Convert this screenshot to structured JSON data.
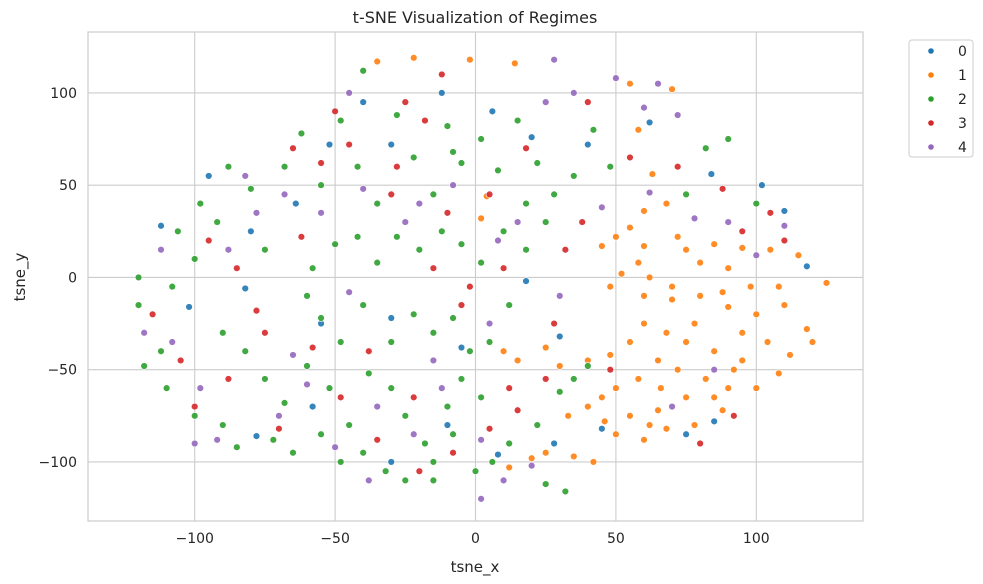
{
  "chart_data": {
    "type": "scatter",
    "title": "t-SNE Visualization of Regimes",
    "xlabel": "tsne_x",
    "ylabel": "tsne_y",
    "xlim": [
      -138,
      138
    ],
    "ylim": [
      -132,
      133
    ],
    "xticks": [
      -100,
      -50,
      0,
      50,
      100
    ],
    "xtick_labels": [
      "−100",
      "−50",
      "0",
      "50",
      "100"
    ],
    "yticks": [
      -100,
      -50,
      0,
      50,
      100
    ],
    "ytick_labels": [
      "−100",
      "−50",
      "0",
      "50",
      "100"
    ],
    "grid": true,
    "legend_position": "outside-top-right",
    "series": [
      {
        "name": "0",
        "color": "#1f77b4",
        "values": [
          [
            -112,
            28
          ],
          [
            -95,
            55
          ],
          [
            -80,
            25
          ],
          [
            -64,
            40
          ],
          [
            -52,
            72
          ],
          [
            -40,
            95
          ],
          [
            -30,
            72
          ],
          [
            -12,
            100
          ],
          [
            6,
            90
          ],
          [
            20,
            76
          ],
          [
            40,
            72
          ],
          [
            62,
            84
          ],
          [
            84,
            56
          ],
          [
            102,
            50
          ],
          [
            110,
            36
          ],
          [
            118,
            6
          ],
          [
            -102,
            -16
          ],
          [
            -82,
            -6
          ],
          [
            -55,
            -25
          ],
          [
            -30,
            -22
          ],
          [
            -5,
            -38
          ],
          [
            18,
            -2
          ],
          [
            30,
            -32
          ],
          [
            45,
            -82
          ],
          [
            -78,
            -86
          ],
          [
            -58,
            -70
          ],
          [
            -30,
            -100
          ],
          [
            -10,
            -80
          ],
          [
            8,
            -96
          ],
          [
            28,
            -90
          ],
          [
            85,
            -78
          ],
          [
            75,
            -85
          ]
        ]
      },
      {
        "name": "1",
        "color": "#ff7f0e",
        "values": [
          [
            -35,
            117
          ],
          [
            -2,
            118
          ],
          [
            14,
            116
          ],
          [
            -22,
            119
          ],
          [
            55,
            105
          ],
          [
            70,
            102
          ],
          [
            58,
            80
          ],
          [
            63,
            56
          ],
          [
            4,
            44
          ],
          [
            2,
            32
          ],
          [
            60,
            36
          ],
          [
            68,
            40
          ],
          [
            55,
            27
          ],
          [
            50,
            22
          ],
          [
            45,
            17
          ],
          [
            60,
            17
          ],
          [
            75,
            15
          ],
          [
            85,
            18
          ],
          [
            95,
            16
          ],
          [
            105,
            15
          ],
          [
            115,
            12
          ],
          [
            125,
            -3
          ],
          [
            58,
            8
          ],
          [
            52,
            2
          ],
          [
            48,
            -5
          ],
          [
            60,
            -10
          ],
          [
            70,
            -12
          ],
          [
            80,
            -10
          ],
          [
            90,
            -16
          ],
          [
            100,
            -20
          ],
          [
            110,
            -15
          ],
          [
            118,
            -28
          ],
          [
            120,
            -35
          ],
          [
            60,
            -25
          ],
          [
            68,
            -30
          ],
          [
            75,
            -35
          ],
          [
            85,
            -40
          ],
          [
            95,
            -30
          ],
          [
            104,
            -35
          ],
          [
            112,
            -42
          ],
          [
            55,
            -35
          ],
          [
            48,
            -42
          ],
          [
            40,
            -45
          ],
          [
            30,
            -48
          ],
          [
            25,
            -38
          ],
          [
            15,
            -45
          ],
          [
            10,
            -40
          ],
          [
            65,
            -45
          ],
          [
            72,
            -50
          ],
          [
            82,
            -55
          ],
          [
            92,
            -50
          ],
          [
            100,
            -60
          ],
          [
            108,
            -52
          ],
          [
            58,
            -55
          ],
          [
            50,
            -60
          ],
          [
            45,
            -65
          ],
          [
            40,
            -70
          ],
          [
            33,
            -75
          ],
          [
            55,
            -75
          ],
          [
            62,
            -80
          ],
          [
            68,
            -82
          ],
          [
            78,
            -80
          ],
          [
            88,
            -72
          ],
          [
            60,
            -88
          ],
          [
            65,
            -72
          ],
          [
            75,
            -65
          ],
          [
            85,
            -65
          ],
          [
            90,
            -60
          ],
          [
            50,
            -85
          ],
          [
            46,
            -78
          ],
          [
            25,
            -95
          ],
          [
            35,
            -97
          ],
          [
            42,
            -100
          ],
          [
            12,
            -103
          ],
          [
            20,
            -98
          ],
          [
            70,
            -5
          ],
          [
            78,
            -25
          ],
          [
            88,
            -8
          ],
          [
            98,
            -5
          ],
          [
            108,
            -5
          ],
          [
            80,
            8
          ],
          [
            72,
            22
          ],
          [
            90,
            5
          ],
          [
            66,
            -60
          ],
          [
            95,
            -45
          ],
          [
            62,
            0
          ]
        ]
      },
      {
        "name": "2",
        "color": "#2ca02c",
        "values": [
          [
            -120,
            -15
          ],
          [
            -112,
            -40
          ],
          [
            -118,
            -48
          ],
          [
            -108,
            -5
          ],
          [
            -100,
            10
          ],
          [
            -98,
            40
          ],
          [
            -88,
            60
          ],
          [
            -92,
            30
          ],
          [
            -80,
            48
          ],
          [
            -75,
            15
          ],
          [
            -68,
            60
          ],
          [
            -62,
            78
          ],
          [
            -55,
            50
          ],
          [
            -48,
            85
          ],
          [
            -42,
            60
          ],
          [
            -35,
            40
          ],
          [
            -28,
            88
          ],
          [
            -22,
            65
          ],
          [
            -15,
            45
          ],
          [
            -10,
            82
          ],
          [
            -5,
            62
          ],
          [
            2,
            75
          ],
          [
            8,
            58
          ],
          [
            15,
            85
          ],
          [
            22,
            62
          ],
          [
            28,
            45
          ],
          [
            35,
            55
          ],
          [
            42,
            80
          ],
          [
            48,
            60
          ],
          [
            -58,
            5
          ],
          [
            -50,
            18
          ],
          [
            -42,
            22
          ],
          [
            -35,
            8
          ],
          [
            -28,
            22
          ],
          [
            -20,
            15
          ],
          [
            -12,
            25
          ],
          [
            -5,
            18
          ],
          [
            2,
            8
          ],
          [
            10,
            25
          ],
          [
            18,
            15
          ],
          [
            25,
            30
          ],
          [
            -60,
            -10
          ],
          [
            -55,
            -22
          ],
          [
            -48,
            -35
          ],
          [
            -40,
            -15
          ],
          [
            -30,
            -35
          ],
          [
            -22,
            -20
          ],
          [
            -15,
            -30
          ],
          [
            -8,
            -22
          ],
          [
            -2,
            -40
          ],
          [
            5,
            -35
          ],
          [
            12,
            -15
          ],
          [
            -90,
            -30
          ],
          [
            -82,
            -40
          ],
          [
            -75,
            -55
          ],
          [
            -68,
            -68
          ],
          [
            -60,
            -48
          ],
          [
            -52,
            -60
          ],
          [
            -45,
            -80
          ],
          [
            -38,
            -52
          ],
          [
            -30,
            -60
          ],
          [
            -25,
            -75
          ],
          [
            -18,
            -90
          ],
          [
            -10,
            -70
          ],
          [
            -5,
            -55
          ],
          [
            2,
            -65
          ],
          [
            -110,
            -60
          ],
          [
            -100,
            -75
          ],
          [
            -90,
            -80
          ],
          [
            -85,
            -92
          ],
          [
            -72,
            -88
          ],
          [
            -65,
            -95
          ],
          [
            -55,
            -85
          ],
          [
            -48,
            -100
          ],
          [
            -40,
            -95
          ],
          [
            -32,
            -105
          ],
          [
            -25,
            -110
          ],
          [
            -15,
            -100
          ],
          [
            -8,
            -85
          ],
          [
            0,
            -105
          ],
          [
            6,
            -100
          ],
          [
            12,
            -90
          ],
          [
            -120,
            0
          ],
          [
            -106,
            25
          ],
          [
            30,
            -62
          ],
          [
            35,
            -55
          ],
          [
            40,
            -48
          ],
          [
            22,
            -80
          ],
          [
            25,
            -112
          ],
          [
            32,
            -116
          ],
          [
            -15,
            -110
          ],
          [
            -40,
            112
          ],
          [
            -8,
            68
          ],
          [
            18,
            40
          ],
          [
            90,
            75
          ],
          [
            100,
            40
          ],
          [
            75,
            45
          ],
          [
            82,
            70
          ]
        ]
      },
      {
        "name": "3",
        "color": "#d62728",
        "values": [
          [
            -115,
            -20
          ],
          [
            -105,
            -45
          ],
          [
            -95,
            20
          ],
          [
            -85,
            5
          ],
          [
            -75,
            -30
          ],
          [
            -62,
            22
          ],
          [
            -55,
            62
          ],
          [
            -45,
            72
          ],
          [
            -38,
            -40
          ],
          [
            -30,
            45
          ],
          [
            -22,
            -65
          ],
          [
            -18,
            85
          ],
          [
            -10,
            35
          ],
          [
            -5,
            -15
          ],
          [
            5,
            45
          ],
          [
            12,
            -60
          ],
          [
            18,
            70
          ],
          [
            28,
            -25
          ],
          [
            32,
            15
          ],
          [
            40,
            95
          ],
          [
            48,
            -50
          ],
          [
            -88,
            -55
          ],
          [
            -70,
            -82
          ],
          [
            -58,
            -38
          ],
          [
            -48,
            -65
          ],
          [
            -35,
            -88
          ],
          [
            -20,
            -105
          ],
          [
            -8,
            -95
          ],
          [
            5,
            -82
          ],
          [
            15,
            -72
          ],
          [
            25,
            -55
          ],
          [
            -65,
            70
          ],
          [
            -50,
            90
          ],
          [
            -25,
            95
          ],
          [
            -15,
            5
          ],
          [
            -2,
            -5
          ],
          [
            10,
            5
          ],
          [
            38,
            30
          ],
          [
            55,
            65
          ],
          [
            72,
            60
          ],
          [
            88,
            48
          ],
          [
            95,
            25
          ],
          [
            105,
            35
          ],
          [
            110,
            20
          ],
          [
            -100,
            -70
          ],
          [
            -78,
            -18
          ],
          [
            80,
            -90
          ],
          [
            92,
            -75
          ],
          [
            -12,
            110
          ],
          [
            -28,
            60
          ]
        ]
      },
      {
        "name": "4",
        "color": "#9467bd",
        "values": [
          [
            -108,
            -35
          ],
          [
            -98,
            -60
          ],
          [
            -88,
            15
          ],
          [
            -78,
            35
          ],
          [
            -65,
            -42
          ],
          [
            -55,
            35
          ],
          [
            -45,
            -8
          ],
          [
            -35,
            -70
          ],
          [
            -25,
            30
          ],
          [
            -15,
            -45
          ],
          [
            -8,
            50
          ],
          [
            5,
            -25
          ],
          [
            15,
            30
          ],
          [
            25,
            95
          ],
          [
            35,
            100
          ],
          [
            50,
            108
          ],
          [
            60,
            92
          ],
          [
            65,
            105
          ],
          [
            72,
            88
          ],
          [
            -70,
            -75
          ],
          [
            -50,
            -92
          ],
          [
            -38,
            -110
          ],
          [
            -22,
            -85
          ],
          [
            -12,
            -60
          ],
          [
            2,
            -88
          ],
          [
            10,
            -110
          ],
          [
            20,
            -102
          ],
          [
            -92,
            -88
          ],
          [
            -82,
            55
          ],
          [
            -68,
            45
          ],
          [
            -40,
            48
          ],
          [
            -20,
            40
          ],
          [
            8,
            20
          ],
          [
            30,
            -10
          ],
          [
            45,
            38
          ],
          [
            62,
            46
          ],
          [
            78,
            32
          ],
          [
            90,
            30
          ],
          [
            100,
            12
          ],
          [
            110,
            28
          ],
          [
            -118,
            -30
          ],
          [
            -112,
            15
          ],
          [
            -100,
            -90
          ],
          [
            85,
            -50
          ],
          [
            70,
            -70
          ],
          [
            -60,
            -58
          ],
          [
            2,
            -120
          ],
          [
            28,
            118
          ],
          [
            -45,
            100
          ]
        ]
      }
    ]
  }
}
